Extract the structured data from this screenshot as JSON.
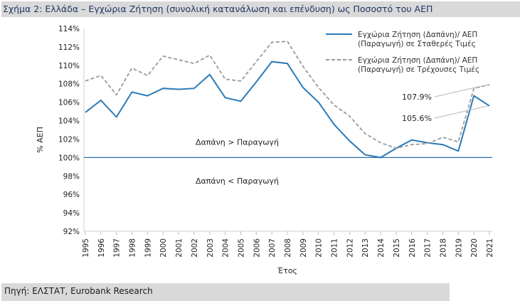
{
  "title": "Σχήμα 2: Ελλάδα – Εγχώρια Ζήτηση (συνολική κατανάλωση και επένδυση) ως Ποσοστό του ΑΕΠ",
  "source": "Πηγή: ΕΛΣΤΑΤ, Eurobank Research",
  "chart_data": {
    "type": "line",
    "x": [
      "1995",
      "1996",
      "1997",
      "1998",
      "1999",
      "2000",
      "2001",
      "2002",
      "2003",
      "2004",
      "2005",
      "2006",
      "2007",
      "2008",
      "2009",
      "2010",
      "2011",
      "2012",
      "2013",
      "2014",
      "2015",
      "2016",
      "2017",
      "2018",
      "2019",
      "2020",
      "2021"
    ],
    "series": [
      {
        "name": "Εγχώρια Ζήτηση (Δαπάνη)/ ΑΕΠ (Παραγωγή) σε Σταθερές Τιμές",
        "name_lines": [
          "Εγχώρια Ζήτηση (Δαπάνη)/ ΑΕΠ",
          "(Παραγωγή) σε Σταθερές Τιμές"
        ],
        "color": "#2a7ab8",
        "style": "solid",
        "values": [
          104.9,
          106.2,
          104.4,
          107.1,
          106.7,
          107.5,
          107.4,
          107.5,
          109.0,
          106.5,
          106.1,
          108.2,
          110.4,
          110.2,
          107.6,
          106.0,
          103.6,
          101.8,
          100.3,
          100.0,
          101.0,
          101.9,
          101.6,
          101.4,
          100.7,
          106.7,
          105.6
        ]
      },
      {
        "name": "Εγχώρια Ζήτηση (Δαπάνη)/ ΑΕΠ (Παραγωγή) σε Τρέχουσες Τιμές",
        "name_lines": [
          "Εγχώρια Ζήτηση (Δαπάνη)/ ΑΕΠ",
          "(Παραγωγή) σε Τρέχουσες Τιμές"
        ],
        "color": "#999999",
        "style": "dashed",
        "values": [
          108.3,
          108.9,
          106.8,
          109.7,
          108.9,
          111.0,
          110.6,
          110.2,
          111.1,
          108.5,
          108.3,
          110.4,
          112.5,
          112.6,
          109.9,
          107.6,
          105.7,
          104.5,
          102.6,
          101.6,
          101.0,
          101.4,
          101.5,
          102.2,
          101.7,
          107.5,
          107.9
        ]
      }
    ],
    "ylim": [
      92,
      114
    ],
    "yticks": [
      "92%",
      "94%",
      "96%",
      "98%",
      "100%",
      "102%",
      "104%",
      "106%",
      "108%",
      "110%",
      "112%",
      "114%"
    ],
    "ylabel": "% ΑΕΠ",
    "xlabel": "Έτος",
    "reference_line": 100,
    "annotations": [
      {
        "text": "Δαπάνη > Παραγωγή",
        "x": "2005",
        "y": 101.7
      },
      {
        "text": "Δαπάνη < Παραγωγή",
        "x": "2005",
        "y": 97.5
      },
      {
        "text": "107.9%",
        "x": "2021",
        "y": 107.9,
        "series": 1
      },
      {
        "text": "105.6%",
        "x": "2021",
        "y": 105.6,
        "series": 0
      }
    ],
    "legend_position": "top-right",
    "grid": false
  }
}
